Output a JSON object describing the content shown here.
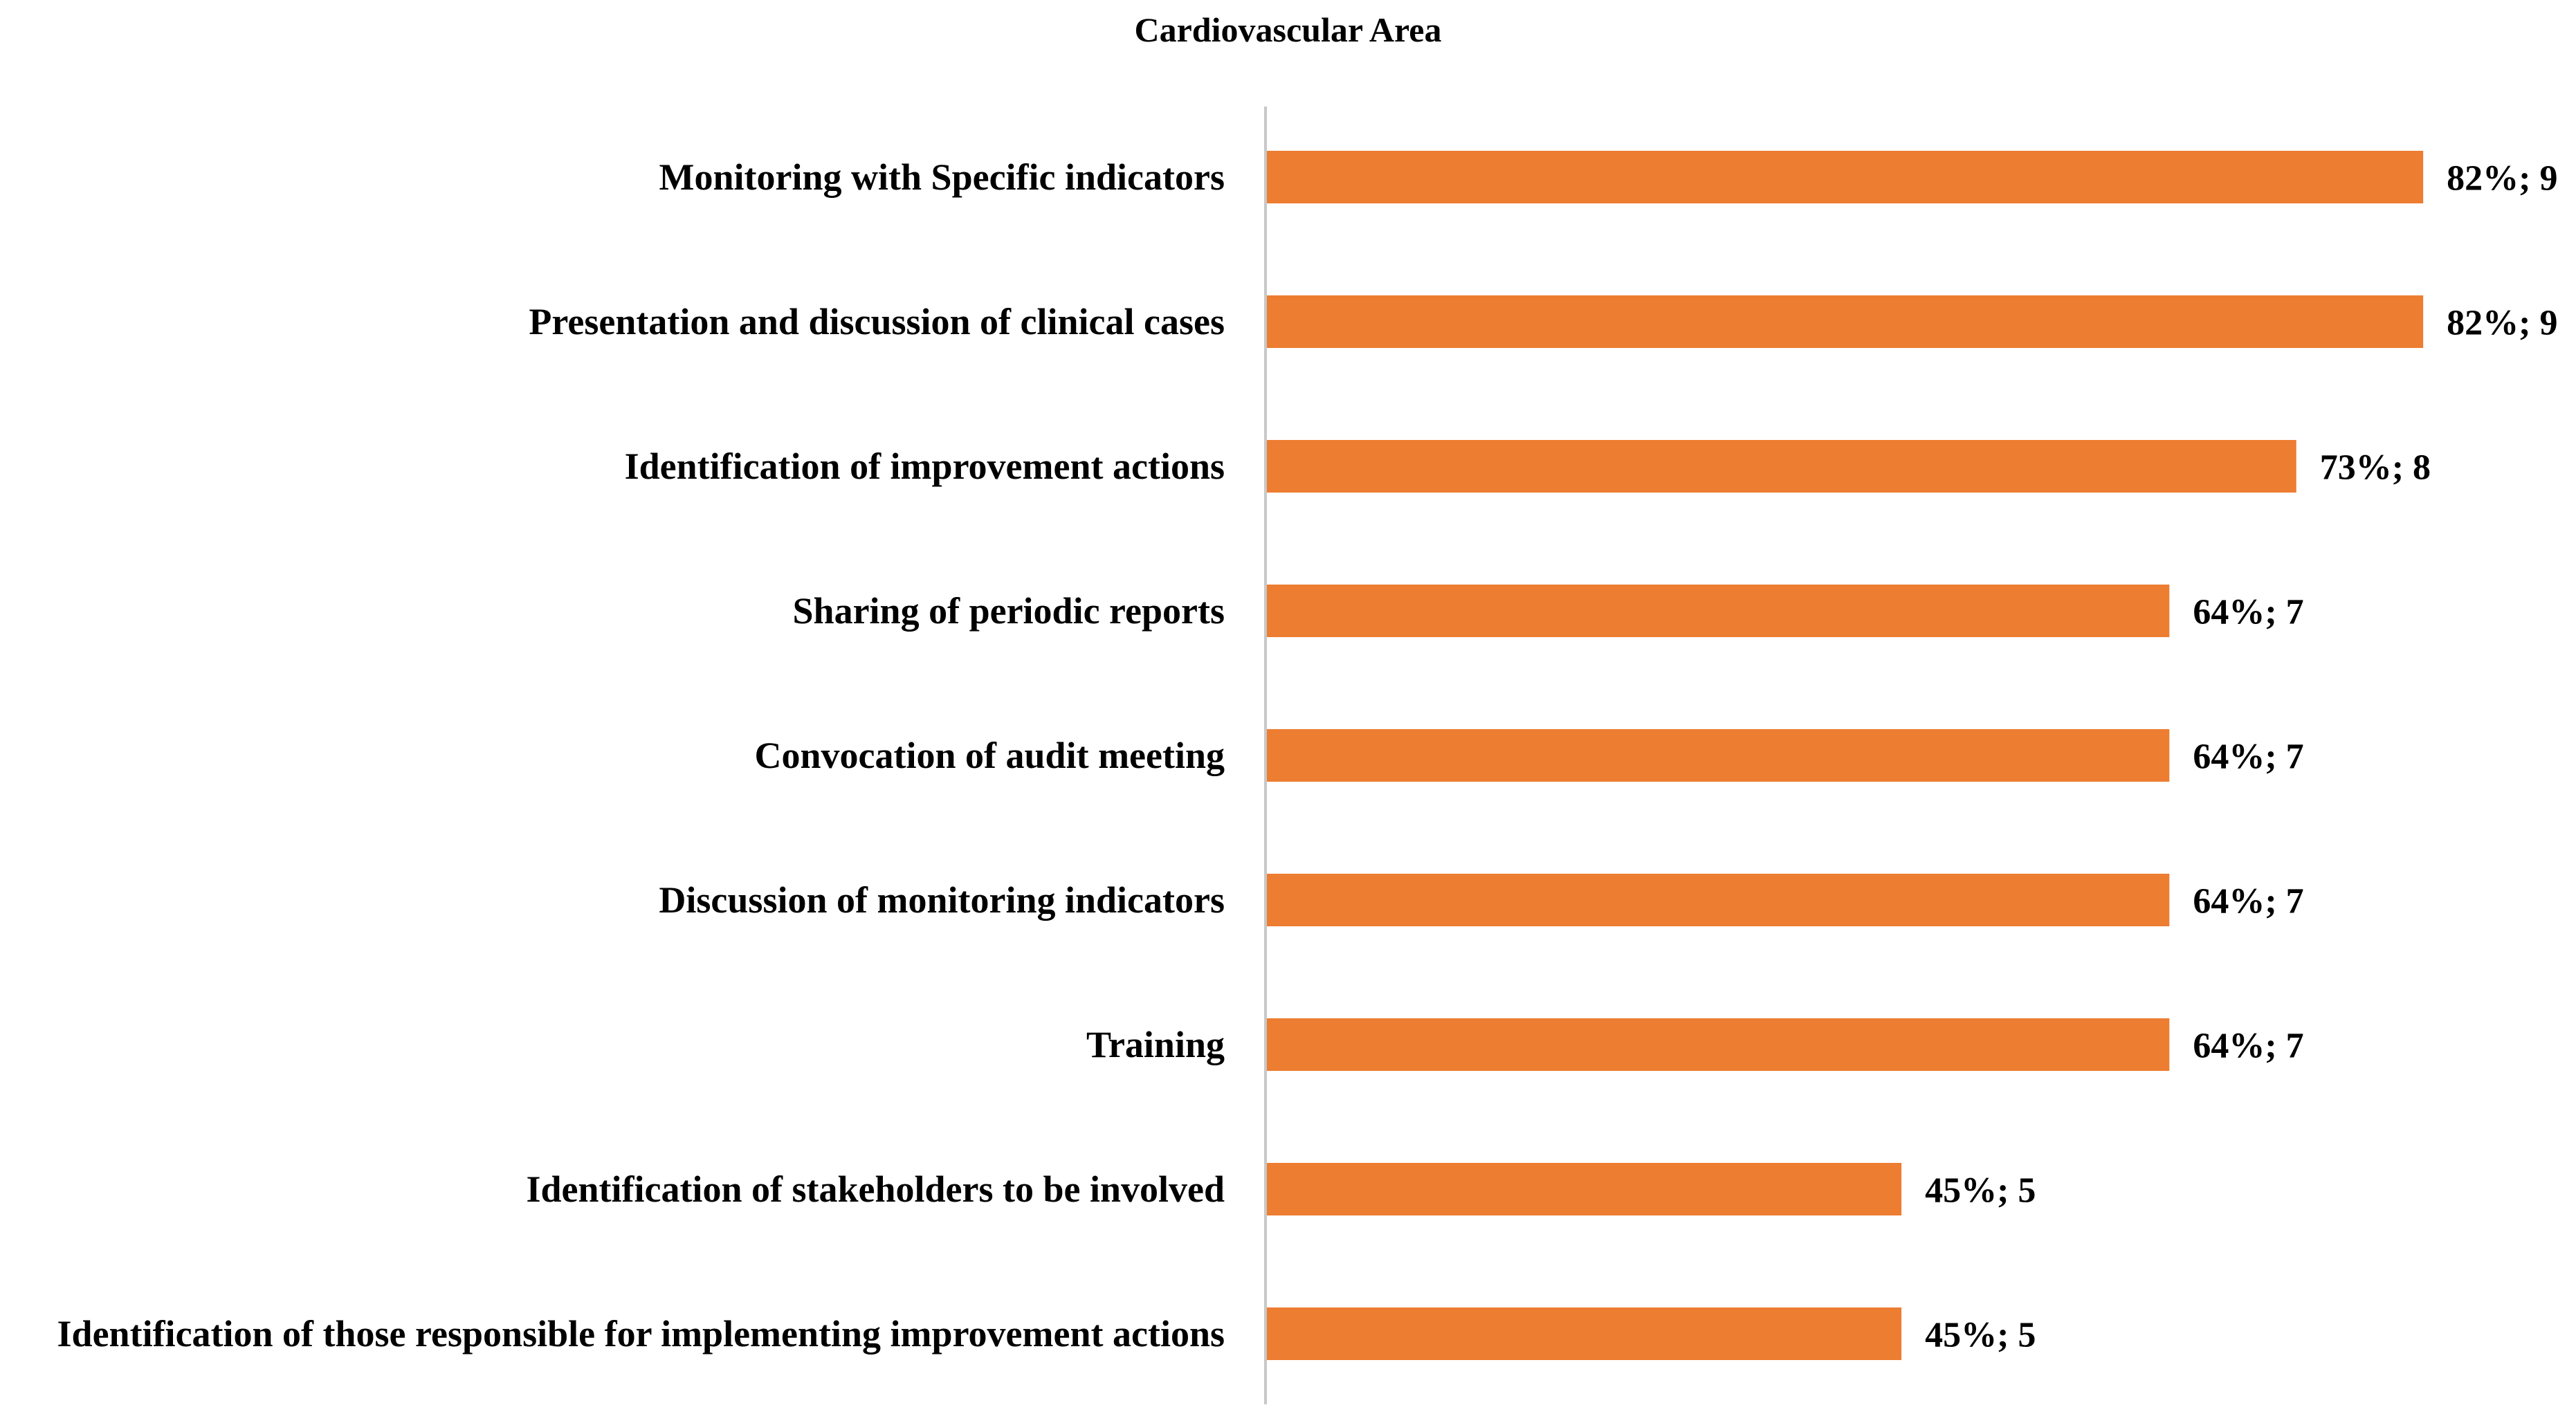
{
  "chart_data": {
    "type": "bar",
    "orientation": "horizontal",
    "title": "Cardiovascular Area",
    "categories": [
      "Monitoring with Specific indicators",
      "Presentation and discussion of clinical cases",
      "Identification of improvement actions",
      "Sharing of periodic reports",
      "Convocation of audit meeting",
      "Discussion of monitoring indicators",
      "Training",
      "Identification of stakeholders to be involved",
      "Identification of those responsible for implementing improvement actions"
    ],
    "values": [
      82,
      82,
      73,
      64,
      64,
      64,
      64,
      45,
      45
    ],
    "value_labels": [
      "82%; 9",
      "82%; 9",
      "73%; 8",
      "64%; 7",
      "64%; 7",
      "64%; 7",
      "64%; 7",
      "45%; 5",
      "45%; 5"
    ],
    "color": "#ed7d31"
  }
}
